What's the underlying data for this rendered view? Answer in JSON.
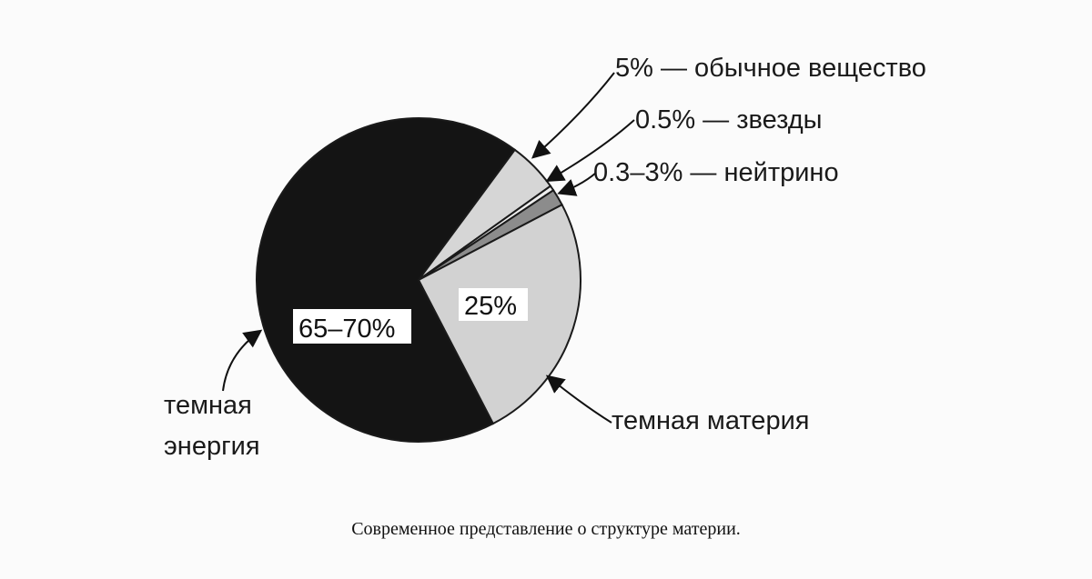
{
  "chart_data": {
    "type": "pie",
    "slices": [
      {
        "value": 67.5,
        "label": "темная энергия",
        "inner_label": "65–70%",
        "color": "#141414"
      },
      {
        "value": 5,
        "label": "5% — обычное вещество",
        "color": "#d6d6d6"
      },
      {
        "value": 0.5,
        "label": "0.5% — звезды",
        "color": "#eeeeee"
      },
      {
        "value": 1.65,
        "label": "0.3–3% — нейтрино",
        "color": "#8c8c8c"
      },
      {
        "value": 25,
        "label": "темная материя",
        "inner_label": "25%",
        "color": "#d2d2d2"
      }
    ],
    "caption": "Современное представление о структуре материи."
  },
  "labels": {
    "dark_energy_line1": "темная",
    "dark_energy_line2": "энергия",
    "ordinary": "5% — обычное вещество",
    "stars": "0.5% — звезды",
    "neutrino": "0.3–3% — нейтрино",
    "dark_matter": "темная материя",
    "dark_energy_pct": "65–70%",
    "dark_matter_pct": "25%"
  },
  "caption": "Современное представление о структуре материи."
}
